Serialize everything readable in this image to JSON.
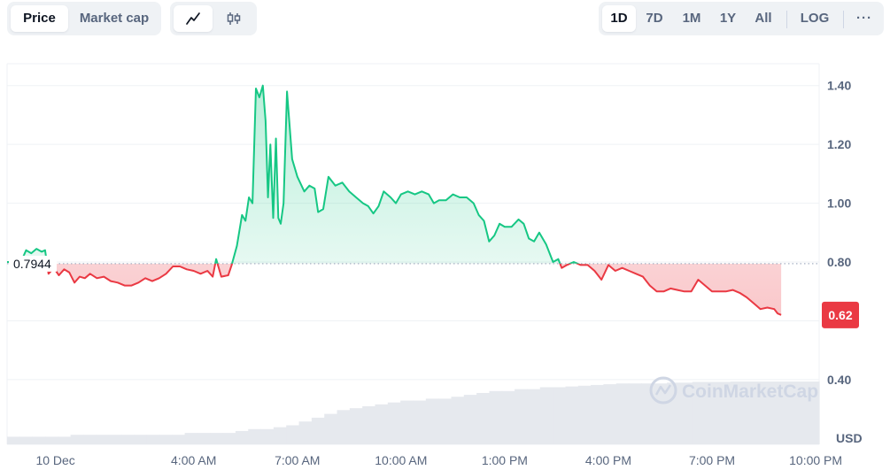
{
  "toolbar": {
    "metric_tabs": [
      {
        "label": "Price",
        "active": true
      },
      {
        "label": "Market cap",
        "active": false
      }
    ],
    "chart_style_icons": [
      {
        "icon": "line-chart-icon",
        "active": true
      },
      {
        "icon": "candlestick-chart-icon",
        "active": false
      }
    ],
    "ranges": [
      {
        "label": "1D",
        "active": true
      },
      {
        "label": "7D",
        "active": false
      },
      {
        "label": "1M",
        "active": false
      },
      {
        "label": "1Y",
        "active": false
      },
      {
        "label": "All",
        "active": false
      }
    ],
    "log_label": "LOG",
    "more_label": "···"
  },
  "colors": {
    "up": "#16c784",
    "down": "#ea3943",
    "grid": "#eff2f5",
    "axis_text": "#58667e",
    "volume": "#e6e9ee",
    "watermark": "#cfd6e4"
  },
  "watermark": "CoinMarketCap",
  "chart_data": {
    "type": "area",
    "reference_value": 0.7944,
    "reference_label": "0.7944",
    "current_value": 0.62,
    "current_label": "0.62",
    "ylim": [
      0.18,
      1.4744
    ],
    "y_ticks": [
      {
        "value": 0.4,
        "label": "0.40"
      },
      {
        "value": 0.6,
        "label": ""
      },
      {
        "value": 0.8,
        "label": "0.80"
      },
      {
        "value": 1.0,
        "label": "1.00"
      },
      {
        "value": 1.2,
        "label": "1.20"
      },
      {
        "value": 1.4,
        "label": "1.40"
      }
    ],
    "y_unit": "USD",
    "x_range": [
      -1.4,
      22.1
    ],
    "x_ticks": [
      {
        "value": 0,
        "label": "10 Dec"
      },
      {
        "value": 4,
        "label": "4:00 AM"
      },
      {
        "value": 7,
        "label": "7:00 AM"
      },
      {
        "value": 10,
        "label": "10:00 AM"
      },
      {
        "value": 13,
        "label": "1:00 PM"
      },
      {
        "value": 16,
        "label": "4:00 PM"
      },
      {
        "value": 19,
        "label": "7:00 PM"
      },
      {
        "value": 22,
        "label": "10:00 PM"
      }
    ],
    "series": [
      {
        "points": [
          [
            -1.4,
            0.8
          ],
          [
            -1.2,
            0.8
          ],
          [
            -1.0,
            0.8
          ],
          [
            -0.85,
            0.84
          ],
          [
            -0.7,
            0.83
          ],
          [
            -0.55,
            0.845
          ],
          [
            -0.4,
            0.835
          ],
          [
            -0.3,
            0.84
          ],
          [
            -0.2,
            0.76
          ],
          [
            -0.05,
            0.78
          ],
          [
            0.1,
            0.755
          ],
          [
            0.25,
            0.775
          ],
          [
            0.4,
            0.765
          ],
          [
            0.55,
            0.73
          ],
          [
            0.7,
            0.75
          ],
          [
            0.85,
            0.745
          ],
          [
            1.0,
            0.76
          ],
          [
            1.2,
            0.745
          ],
          [
            1.4,
            0.75
          ],
          [
            1.6,
            0.735
          ],
          [
            1.8,
            0.73
          ],
          [
            2.0,
            0.72
          ],
          [
            2.2,
            0.72
          ],
          [
            2.4,
            0.73
          ],
          [
            2.6,
            0.745
          ],
          [
            2.8,
            0.735
          ],
          [
            3.0,
            0.745
          ],
          [
            3.2,
            0.76
          ],
          [
            3.4,
            0.785
          ],
          [
            3.6,
            0.785
          ],
          [
            3.8,
            0.775
          ],
          [
            4.0,
            0.77
          ],
          [
            4.2,
            0.76
          ],
          [
            4.4,
            0.77
          ],
          [
            4.55,
            0.75
          ],
          [
            4.65,
            0.81
          ],
          [
            4.8,
            0.75
          ],
          [
            5.0,
            0.755
          ],
          [
            5.1,
            0.79
          ],
          [
            5.25,
            0.855
          ],
          [
            5.4,
            0.96
          ],
          [
            5.5,
            0.94
          ],
          [
            5.6,
            1.02
          ],
          [
            5.7,
            1.0
          ],
          [
            5.8,
            1.39
          ],
          [
            5.9,
            1.36
          ],
          [
            6.0,
            1.4
          ],
          [
            6.08,
            1.28
          ],
          [
            6.15,
            1.02
          ],
          [
            6.22,
            1.2
          ],
          [
            6.3,
            0.95
          ],
          [
            6.38,
            1.22
          ],
          [
            6.45,
            0.95
          ],
          [
            6.52,
            0.93
          ],
          [
            6.6,
            1.0
          ],
          [
            6.7,
            1.38
          ],
          [
            6.85,
            1.15
          ],
          [
            7.0,
            1.09
          ],
          [
            7.2,
            1.04
          ],
          [
            7.35,
            1.06
          ],
          [
            7.5,
            1.05
          ],
          [
            7.6,
            0.97
          ],
          [
            7.75,
            0.98
          ],
          [
            7.9,
            1.09
          ],
          [
            8.1,
            1.06
          ],
          [
            8.3,
            1.07
          ],
          [
            8.5,
            1.04
          ],
          [
            8.7,
            1.02
          ],
          [
            8.9,
            1.0
          ],
          [
            9.05,
            0.99
          ],
          [
            9.2,
            0.965
          ],
          [
            9.35,
            0.99
          ],
          [
            9.5,
            1.04
          ],
          [
            9.7,
            1.02
          ],
          [
            9.85,
            1.0
          ],
          [
            10.0,
            1.03
          ],
          [
            10.2,
            1.04
          ],
          [
            10.4,
            1.03
          ],
          [
            10.6,
            1.04
          ],
          [
            10.8,
            1.03
          ],
          [
            10.95,
            1.0
          ],
          [
            11.1,
            1.01
          ],
          [
            11.3,
            1.01
          ],
          [
            11.5,
            1.03
          ],
          [
            11.7,
            1.02
          ],
          [
            11.9,
            1.02
          ],
          [
            12.1,
            1.0
          ],
          [
            12.25,
            0.96
          ],
          [
            12.4,
            0.94
          ],
          [
            12.55,
            0.87
          ],
          [
            12.7,
            0.89
          ],
          [
            12.85,
            0.93
          ],
          [
            13.0,
            0.92
          ],
          [
            13.2,
            0.92
          ],
          [
            13.4,
            0.945
          ],
          [
            13.55,
            0.93
          ],
          [
            13.7,
            0.88
          ],
          [
            13.85,
            0.87
          ],
          [
            14.0,
            0.9
          ],
          [
            14.2,
            0.86
          ],
          [
            14.4,
            0.8
          ],
          [
            14.55,
            0.81
          ],
          [
            14.65,
            0.78
          ],
          [
            14.8,
            0.79
          ],
          [
            15.0,
            0.8
          ],
          [
            15.2,
            0.79
          ],
          [
            15.4,
            0.79
          ],
          [
            15.6,
            0.77
          ],
          [
            15.8,
            0.74
          ],
          [
            16.0,
            0.79
          ],
          [
            16.2,
            0.77
          ],
          [
            16.4,
            0.78
          ],
          [
            16.6,
            0.77
          ],
          [
            16.8,
            0.76
          ],
          [
            17.0,
            0.75
          ],
          [
            17.2,
            0.72
          ],
          [
            17.4,
            0.7
          ],
          [
            17.6,
            0.7
          ],
          [
            17.8,
            0.71
          ],
          [
            18.0,
            0.705
          ],
          [
            18.2,
            0.7
          ],
          [
            18.4,
            0.7
          ],
          [
            18.6,
            0.74
          ],
          [
            18.8,
            0.72
          ],
          [
            19.0,
            0.7
          ],
          [
            19.2,
            0.7
          ],
          [
            19.4,
            0.7
          ],
          [
            19.6,
            0.705
          ],
          [
            19.8,
            0.695
          ],
          [
            20.0,
            0.68
          ],
          [
            20.2,
            0.66
          ],
          [
            20.4,
            0.64
          ],
          [
            20.6,
            0.645
          ],
          [
            20.8,
            0.64
          ],
          [
            20.9,
            0.625
          ],
          [
            21.0,
            0.62
          ]
        ]
      }
    ],
    "volume": [
      0.02,
      0.02,
      0.02,
      0.02,
      0.02,
      0.025,
      0.025,
      0.025,
      0.025,
      0.025,
      0.025,
      0.025,
      0.025,
      0.025,
      0.03,
      0.03,
      0.03,
      0.03,
      0.035,
      0.04,
      0.04,
      0.045,
      0.05,
      0.06,
      0.07,
      0.08,
      0.09,
      0.095,
      0.1,
      0.105,
      0.11,
      0.115,
      0.115,
      0.12,
      0.12,
      0.125,
      0.13,
      0.135,
      0.14,
      0.14,
      0.145,
      0.145,
      0.15,
      0.15,
      0.152,
      0.154,
      0.156,
      0.158,
      0.16,
      0.16,
      0.16,
      0.16,
      0.162,
      0.162,
      0.164,
      0.164,
      0.164,
      0.165,
      0.165,
      0.165,
      0.165,
      0.165,
      0.165,
      0.165
    ]
  }
}
